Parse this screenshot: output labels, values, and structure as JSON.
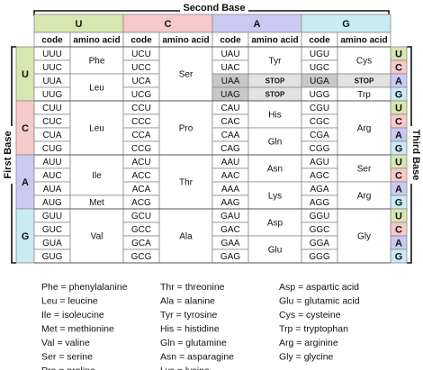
{
  "second_base_label": "Second Base",
  "first_base_label": "First Base",
  "third_base_label": "Third Base",
  "table": {
    "second_bases": [
      "U",
      "C",
      "A",
      "G"
    ],
    "column_headers": [
      "code",
      "amino acid"
    ],
    "first_bases": [
      "U",
      "C",
      "A",
      "G"
    ],
    "third_bases": [
      "U",
      "C",
      "A",
      "G"
    ],
    "groups": [
      {
        "blocks": [
          {
            "codons": [
              "UUU",
              "UUC",
              "UUA",
              "UUG"
            ],
            "amino": [
              "Phe",
              null,
              "Leu",
              null
            ]
          },
          {
            "codons": [
              "UCU",
              "UCC",
              "UCA",
              "UCG"
            ],
            "amino": [
              "Ser",
              null,
              null,
              null
            ]
          },
          {
            "codons": [
              "UAU",
              "UAC",
              "UAA",
              "UAG"
            ],
            "amino": [
              "Tyr",
              null,
              "STOP",
              "STOP"
            ]
          },
          {
            "codons": [
              "UGU",
              "UGC",
              "UGA",
              "UGG"
            ],
            "amino": [
              "Cys",
              null,
              "STOP",
              "Trp"
            ]
          }
        ]
      },
      {
        "blocks": [
          {
            "codons": [
              "CUU",
              "CUC",
              "CUA",
              "CUG"
            ],
            "amino": [
              "Leu",
              null,
              null,
              null
            ]
          },
          {
            "codons": [
              "CCU",
              "CCC",
              "CCA",
              "CCG"
            ],
            "amino": [
              "Pro",
              null,
              null,
              null
            ]
          },
          {
            "codons": [
              "CAU",
              "CAC",
              "CAA",
              "CAG"
            ],
            "amino": [
              "His",
              null,
              "Gln",
              null
            ]
          },
          {
            "codons": [
              "CGU",
              "CGC",
              "CGA",
              "CGG"
            ],
            "amino": [
              "Arg",
              null,
              null,
              null
            ]
          }
        ]
      },
      {
        "blocks": [
          {
            "codons": [
              "AUU",
              "AUC",
              "AUA",
              "AUG"
            ],
            "amino": [
              "Ile",
              null,
              null,
              "Met"
            ]
          },
          {
            "codons": [
              "ACU",
              "ACC",
              "ACA",
              "ACG"
            ],
            "amino": [
              "Thr",
              null,
              null,
              null
            ]
          },
          {
            "codons": [
              "AAU",
              "AAC",
              "AAA",
              "AAG"
            ],
            "amino": [
              "Asn",
              null,
              "Lys",
              null
            ]
          },
          {
            "codons": [
              "AGU",
              "AGC",
              "AGA",
              "AGG"
            ],
            "amino": [
              "Ser",
              null,
              "Arg",
              null
            ]
          }
        ]
      },
      {
        "blocks": [
          {
            "codons": [
              "GUU",
              "GUC",
              "GUA",
              "GUG"
            ],
            "amino": [
              "Val",
              null,
              null,
              null
            ]
          },
          {
            "codons": [
              "GCU",
              "GCC",
              "GCA",
              "GCG"
            ],
            "amino": [
              "Ala",
              null,
              null,
              null
            ]
          },
          {
            "codons": [
              "GAU",
              "GAC",
              "GAA",
              "GAG"
            ],
            "amino": [
              "Asp",
              null,
              "Glu",
              null
            ]
          },
          {
            "codons": [
              "GGU",
              "GGC",
              "GGA",
              "GGG"
            ],
            "amino": [
              "Gly",
              null,
              null,
              null
            ]
          }
        ]
      }
    ]
  },
  "legend": [
    [
      "Phe = phenylalanine",
      "Leu = leucine",
      "Ile = isoleucine",
      "Met = methionine",
      "Val = valine",
      "Ser = serine",
      "Pro = proline"
    ],
    [
      "Thr = threonine",
      "Ala = alanine",
      "Tyr = tyrosine",
      "His = histidine",
      "Gln = glutamine",
      "Asn = asparagine",
      "Lys = lysine"
    ],
    [
      "Asp = aspartic acid",
      "Glu = glutamic acid",
      "Cys = cysteine",
      "Trp = tryptophan",
      "Arg = arginine",
      "Gly = glycine"
    ]
  ]
}
